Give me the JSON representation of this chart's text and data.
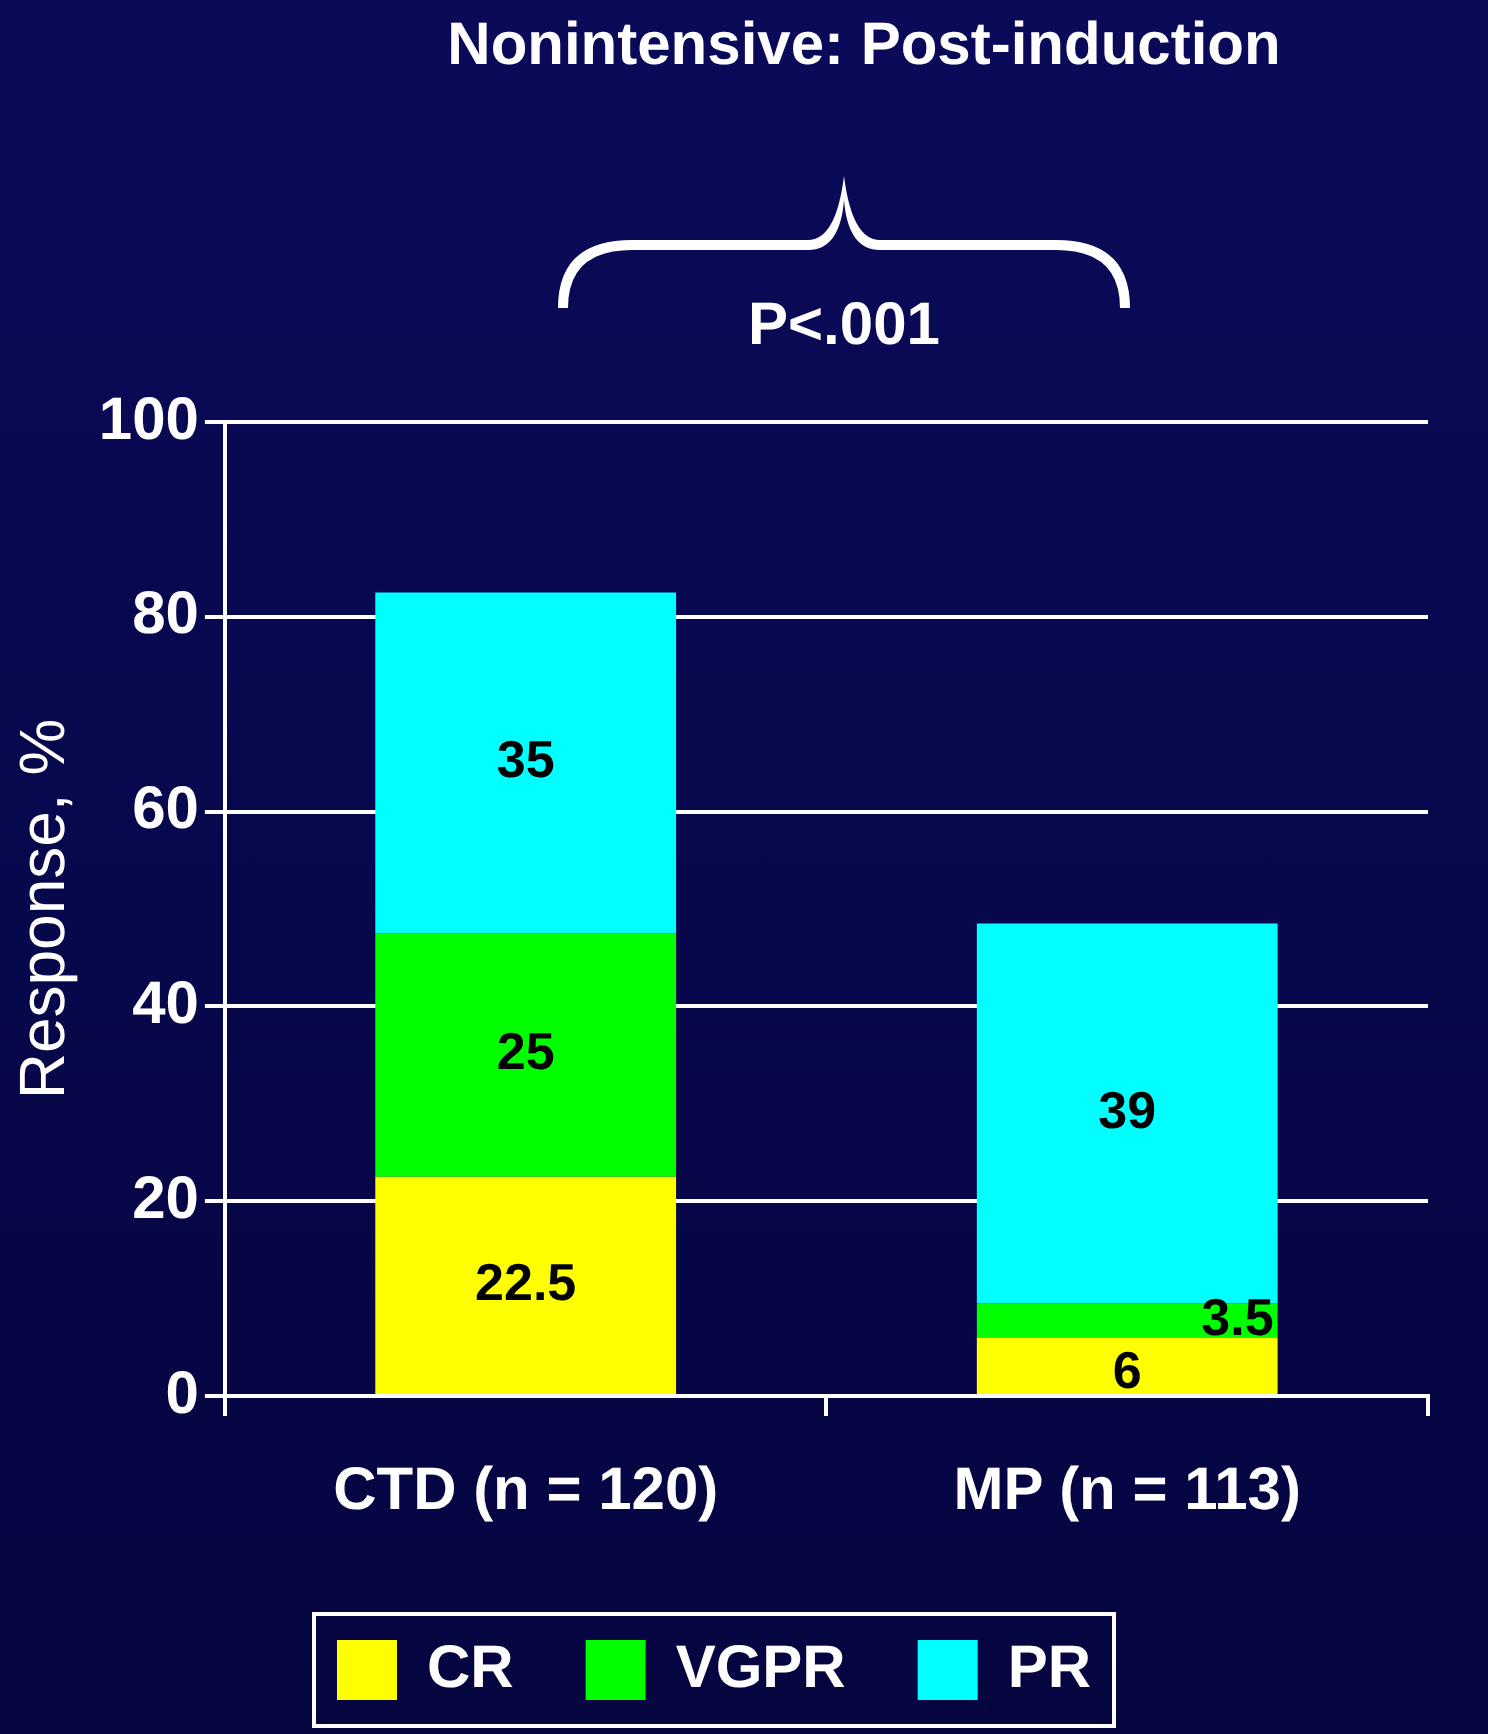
{
  "chart_data": {
    "type": "bar",
    "title": "Nonintensive: Post-induction",
    "ylabel": "Response, %",
    "annotations": [
      "P<.001"
    ],
    "categories": [
      "CTD (n = 120)",
      "MP (n = 113)"
    ],
    "stacked": true,
    "series": [
      {
        "name": "CR",
        "color": "#ffff00",
        "values": [
          22.5,
          6
        ]
      },
      {
        "name": "VGPR",
        "color": "#00ff00",
        "values": [
          25,
          3.5
        ]
      },
      {
        "name": "PR",
        "color": "#00ffff",
        "values": [
          35,
          39
        ]
      }
    ],
    "ylim": [
      0,
      100
    ],
    "yticks": [
      0,
      20,
      40,
      60,
      80,
      100
    ],
    "grid": "y",
    "legend": "bottom",
    "data_labels": true
  }
}
